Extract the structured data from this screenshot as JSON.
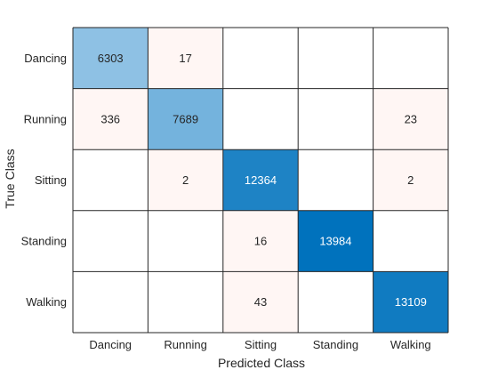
{
  "chart_data": {
    "type": "heatmap",
    "xlabel": "Predicted Class",
    "ylabel": "True Class",
    "x_categories": [
      "Dancing",
      "Running",
      "Sitting",
      "Standing",
      "Walking"
    ],
    "y_categories": [
      "Dancing",
      "Running",
      "Sitting",
      "Standing",
      "Walking"
    ],
    "values": [
      [
        6303,
        17,
        null,
        null,
        null
      ],
      [
        336,
        7689,
        null,
        null,
        23
      ],
      [
        null,
        2,
        12364,
        null,
        2
      ],
      [
        null,
        null,
        16,
        13984,
        null
      ],
      [
        null,
        null,
        43,
        null,
        13109
      ]
    ],
    "colors": {
      "diagonal_max": "#0072BD",
      "diagonal_min": "#8EC1E4",
      "off_diagonal": "#FFF6F4",
      "empty": "#FFFFFF",
      "grid": "#262626",
      "text_dark": "#262626",
      "text_light": "#FFFFFF"
    }
  }
}
